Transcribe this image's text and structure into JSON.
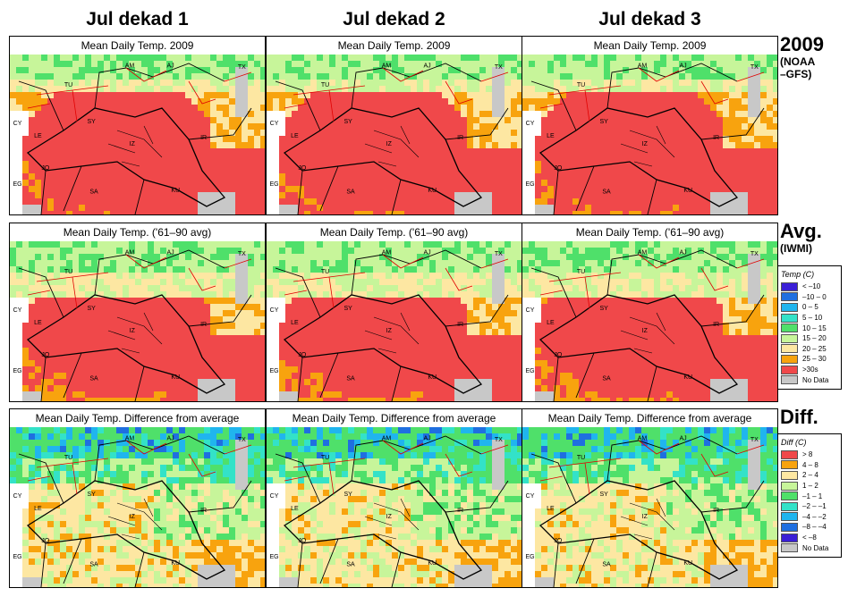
{
  "column_titles": [
    "Jul dekad 1",
    "Jul dekad 2",
    "Jul dekad 3"
  ],
  "rows": [
    {
      "panel_title": "Mean Daily Temp. 2009",
      "label_main": "2009",
      "label_sub": [
        "(NOAA",
        "–GFS)"
      ],
      "mode": "temp2009"
    },
    {
      "panel_title": "Mean Daily Temp. ('61–90 avg)",
      "label_main": "Avg.",
      "label_sub": [
        "(IWMI)"
      ],
      "mode": "tempavg"
    },
    {
      "panel_title": "Mean Daily Temp. Difference from average",
      "label_main": "Diff.",
      "label_sub": [],
      "mode": "diff"
    }
  ],
  "region_labels": [
    "AM",
    "AJ",
    "TX",
    "TU",
    "CY",
    "SY",
    "LE",
    "IR",
    "IZ",
    "JO",
    "EG",
    "SA",
    "KU"
  ],
  "temp_legend": {
    "title": "Temp (C)",
    "items": [
      {
        "label": "< –10",
        "color": "#3a1fd6"
      },
      {
        "label": "–10 – 0",
        "color": "#1f6fe0"
      },
      {
        "label": "0 – 5",
        "color": "#20b5ee"
      },
      {
        "label": "5 – 10",
        "color": "#33e2c8"
      },
      {
        "label": "10 – 15",
        "color": "#4fe06a"
      },
      {
        "label": "15 – 20",
        "color": "#c7f59a"
      },
      {
        "label": "20 – 25",
        "color": "#fde7a2"
      },
      {
        "label": "25 – 30",
        "color": "#f8a30e"
      },
      {
        "label": ">30s",
        "color": "#f0484a"
      },
      {
        "label": "No Data",
        "color": "#c8c8c8"
      }
    ]
  },
  "diff_legend": {
    "title": "Diff (C)",
    "items": [
      {
        "label": "> 8",
        "color": "#f0484a"
      },
      {
        "label": "4 – 8",
        "color": "#f8a30e"
      },
      {
        "label": "2 – 4",
        "color": "#fde7a2"
      },
      {
        "label": "1 – 2",
        "color": "#c7f59a"
      },
      {
        "label": "–1 – 1",
        "color": "#4fe06a"
      },
      {
        "label": "–2 – –1",
        "color": "#33e2c8"
      },
      {
        "label": "–4 – –2",
        "color": "#20b5ee"
      },
      {
        "label": "–8 – –4",
        "color": "#1f6fe0"
      },
      {
        "label": "< –8",
        "color": "#3a1fd6"
      },
      {
        "label": "No Data",
        "color": "#c8c8c8"
      }
    ]
  },
  "colors": {
    "land_hot": "#f0484a",
    "land_warm": "#f8a30e",
    "land_mild": "#fde7a2",
    "land_cool": "#c7f59a",
    "green": "#4fe06a",
    "cyan": "#33e2c8",
    "sky": "#20b5ee",
    "blue": "#1f6fe0",
    "no_data": "#c8c8c8",
    "border_black": "#000000",
    "border_red": "#e00000"
  }
}
